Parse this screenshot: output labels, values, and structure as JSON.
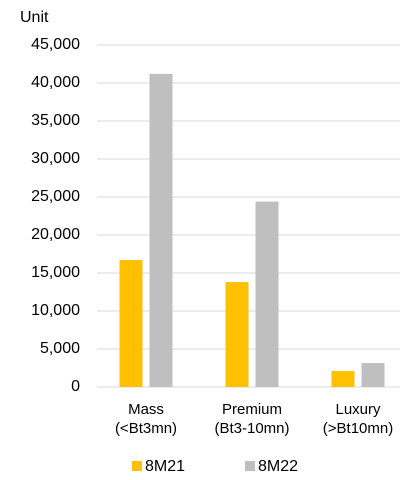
{
  "chart_data": {
    "type": "bar",
    "y_axis_label": "Unit",
    "categories": [
      [
        "Mass",
        "(<Bt3mn)"
      ],
      [
        "Premium",
        "(Bt3-10mn)"
      ],
      [
        "Luxury",
        "(>Bt10mn)"
      ]
    ],
    "series": [
      {
        "name": "8M21",
        "color": "#ffc000",
        "values": [
          16700,
          13800,
          2100
        ]
      },
      {
        "name": "8M22",
        "color": "#bfbfbf",
        "values": [
          41200,
          24400,
          3150
        ]
      }
    ],
    "ylim": [
      0,
      45000
    ],
    "yticks": [
      0,
      {
        "value": 5000,
        "label": "5,000"
      },
      {
        "value": 10000,
        "label": "10,000"
      },
      {
        "value": 15000,
        "label": "15,000"
      },
      {
        "value": 20000,
        "label": "20,000"
      },
      {
        "value": 25000,
        "label": "25,000"
      },
      {
        "value": 30000,
        "label": "30,000"
      },
      {
        "value": 35000,
        "label": "35,000"
      },
      {
        "value": 40000,
        "label": "40,000"
      },
      {
        "value": 45000,
        "label": "45,000"
      }
    ],
    "grid": true,
    "legend": "bottom"
  }
}
